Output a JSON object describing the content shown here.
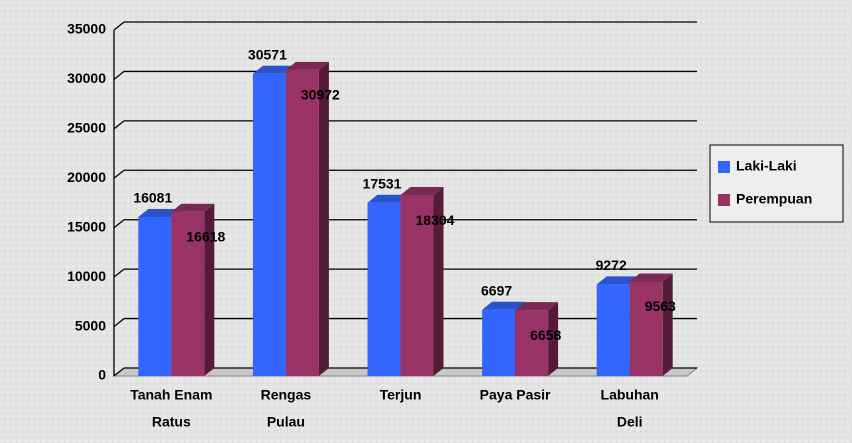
{
  "chart_data": {
    "type": "bar3d",
    "categories": [
      [
        "Tanah Enam",
        "Ratus"
      ],
      [
        "Rengas",
        "Pulau"
      ],
      [
        "Terjun"
      ],
      [
        "Paya Pasir"
      ],
      [
        "Labuhan",
        "Deli"
      ]
    ],
    "series": [
      {
        "name": "Laki-Laki",
        "color": "#3366ff",
        "values": [
          16081,
          30571,
          17531,
          6697,
          9272
        ]
      },
      {
        "name": "Perempuan",
        "color": "#993366",
        "values": [
          16618,
          30972,
          18304,
          6658,
          9563
        ]
      }
    ],
    "ylim": [
      0,
      35000
    ],
    "yticks": [
      0,
      5000,
      10000,
      15000,
      20000,
      25000,
      30000,
      35000
    ],
    "grid": true,
    "legend": "right"
  }
}
